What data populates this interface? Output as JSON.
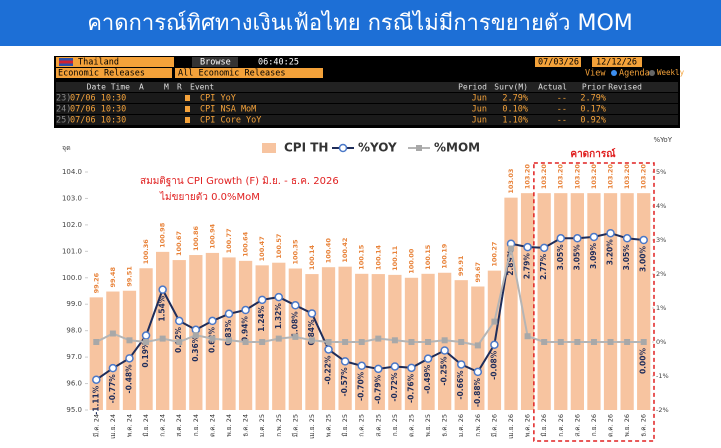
{
  "banner": {
    "title": "คาดการณ์ทิศทางเงินเฟ้อไทย กรณีไม่มีการขยายตัว MOM"
  },
  "terminal": {
    "country": "Thailand",
    "browse": "Browse",
    "time": "06:40:25",
    "start_date": "07/03/26",
    "end_date": "12/12/26",
    "category": "Economic Releases",
    "filter": "All Economic Releases",
    "view": "View",
    "agenda": "Agenda",
    "weekly": "Weekly",
    "columns": [
      "Date Time",
      "A",
      "M",
      "R",
      "Event",
      "Period",
      "Surv(M)",
      "Actual",
      "Prior",
      "Revised"
    ],
    "rows": [
      [
        "23)",
        "07/06 10:30",
        "CPI YoY",
        "Jun",
        "2.79%",
        "--",
        "2.79%"
      ],
      [
        "24)",
        "07/06 10:30",
        "CPI NSA MoM",
        "Jun",
        "0.10%",
        "--",
        "0.17%"
      ],
      [
        "25)",
        "07/06 10:30",
        "CPI Core YoY",
        "Jun",
        "1.10%",
        "--",
        "0.92%"
      ]
    ]
  },
  "chart_data": {
    "type": "bar_line",
    "y_axis_label": "จุด",
    "y2_axis_label": "%YoY",
    "annotations": [
      "สมมติฐาน CPI Growth (F) มิ.ย. - ธ.ค. 2026",
      "ไม่ขยายตัว 0.0%MoM"
    ],
    "forecast_label": "คาดการณ์",
    "forecast_start": 27,
    "categories": [
      "มี.ค. 24",
      "เม.ย. 24",
      "พ.ค. 24",
      "มิ.ย. 24",
      "ก.ค. 24",
      "ส.ค. 24",
      "ก.ย. 24",
      "ต.ค. 24",
      "พ.ย. 24",
      "ธ.ค. 24",
      "ม.ค. 25",
      "ก.พ. 25",
      "มี.ค. 25",
      "เม.ย. 25",
      "พ.ค. 25",
      "มิ.ย. 25",
      "ก.ค. 25",
      "ส.ค. 25",
      "ก.ย. 25",
      "ต.ค. 25",
      "พ.ย. 25",
      "ธ.ค. 25",
      "ม.ค. 26",
      "ก.พ. 26",
      "มี.ค. 26",
      "เม.ย. 26",
      "พ.ค. 26",
      "มิ.ย. 26",
      "ก.ค. 26",
      "ส.ค. 26",
      "ก.ย. 26",
      "ต.ค. 26",
      "พ.ย. 26",
      "ธ.ค. 26"
    ],
    "series": [
      {
        "name": "CPI TH",
        "kind": "bar",
        "color": "#f7c4a0",
        "label_color": "#e8833a",
        "values": [
          99.26,
          99.48,
          99.51,
          100.36,
          100.98,
          100.67,
          100.86,
          100.94,
          100.77,
          100.64,
          100.47,
          100.57,
          100.35,
          100.14,
          100.4,
          100.42,
          100.15,
          100.14,
          100.11,
          100.0,
          100.15,
          100.19,
          99.91,
          99.67,
          100.27,
          103.03,
          103.2,
          103.2,
          103.2,
          103.2,
          103.2,
          103.2,
          103.2,
          103.2
        ],
        "value_labels": [
          "99.26",
          "99.48",
          "99.51",
          "100.36",
          "100.98",
          "100.67",
          "100.86",
          "100.94",
          "100.77",
          "100.64",
          "100.47",
          "100.57",
          "100.35",
          "100.14",
          "100.40",
          "100.42",
          "100.15",
          "100.14",
          "100.11",
          "100.00",
          "100.15",
          "100.19",
          "99.91",
          "99.67",
          "100.27",
          "103.03",
          "103.20",
          "103.20",
          "103.20",
          "103.20",
          "103.20",
          "103.20",
          "103.20",
          "103.20"
        ]
      },
      {
        "name": "%YOY",
        "kind": "line",
        "axis": "y2",
        "color": "#1f2d5a",
        "marker": "circle",
        "marker_color": "#4a78c8",
        "values": [
          -1.11,
          -0.77,
          -0.48,
          0.19,
          1.54,
          0.62,
          0.36,
          0.62,
          0.83,
          0.94,
          1.24,
          1.32,
          1.08,
          0.84,
          -0.22,
          -0.57,
          -0.7,
          -0.79,
          -0.72,
          -0.76,
          -0.49,
          -0.25,
          -0.66,
          -0.88,
          -0.08,
          2.89,
          2.79,
          2.77,
          3.05,
          3.05,
          3.09,
          3.2,
          3.05,
          3.0
        ],
        "value_labels": [
          "-1.11%",
          "-0.77%",
          "-0.48%",
          "0.19%",
          "1.54%",
          "0.62%",
          "0.36%",
          "0.62%",
          "0.83%",
          "0.94%",
          "1.24%",
          "1.32%",
          "1.08%",
          "0.84%",
          "-0.22%",
          "-0.57%",
          "-0.70%",
          "-0.79%",
          "-0.72%",
          "-0.76%",
          "-0.49%",
          "-0.25%",
          "-0.66%",
          "-0.88%",
          "-0.08%",
          "2.89%",
          "2.79%",
          "2.77%",
          "3.05%",
          "3.05%",
          "3.09%",
          "3.20%",
          "3.05%",
          "3.00%"
        ]
      },
      {
        "name": "%MOM",
        "kind": "line",
        "axis": "y2",
        "color": "#b5b5b5",
        "marker": "square",
        "marker_color": "#a8a8a8",
        "values": [
          0.0,
          0.25,
          0.05,
          0.0,
          0.1,
          0.0,
          0.2,
          0.1,
          0.05,
          0.0,
          0.0,
          0.1,
          0.15,
          0.05,
          0.0,
          0.0,
          0.0,
          0.1,
          0.05,
          0.0,
          0.0,
          0.05,
          0.0,
          -0.1,
          0.6,
          2.75,
          0.17,
          0.0,
          0.0,
          0.0,
          0.0,
          0.0,
          0.0,
          0.0
        ],
        "value_labels": [
          null,
          null,
          null,
          null,
          null,
          null,
          null,
          null,
          null,
          null,
          null,
          null,
          null,
          null,
          null,
          null,
          null,
          null,
          null,
          null,
          null,
          null,
          null,
          null,
          null,
          null,
          null,
          null,
          null,
          null,
          null,
          null,
          null,
          "0.00%"
        ]
      }
    ],
    "ylim": [
      95,
      104
    ],
    "yticks": [
      {
        "value": 95,
        "label": "95.0"
      },
      {
        "value": 96,
        "label": "96.0"
      },
      {
        "value": 97,
        "label": "97.0"
      },
      {
        "value": 98,
        "label": "98.0"
      },
      {
        "value": 99,
        "label": "99.0"
      },
      {
        "value": 100,
        "label": "100.0"
      },
      {
        "value": 101,
        "label": "101.0"
      },
      {
        "value": 102,
        "label": "102.0"
      },
      {
        "value": 103,
        "label": "103.0"
      },
      {
        "value": 104,
        "label": "104.0"
      }
    ],
    "y2lim": [
      -2,
      5
    ],
    "y2ticks": [
      {
        "value": -2,
        "label": "-2%"
      },
      {
        "value": -1,
        "label": "-1%"
      },
      {
        "value": 0,
        "label": "0%"
      },
      {
        "value": 1,
        "label": "1%"
      },
      {
        "value": 2,
        "label": "2%"
      },
      {
        "value": 3,
        "label": "3%"
      },
      {
        "value": 4,
        "label": "4%"
      },
      {
        "value": 5,
        "label": "5%"
      }
    ],
    "grid": false
  }
}
